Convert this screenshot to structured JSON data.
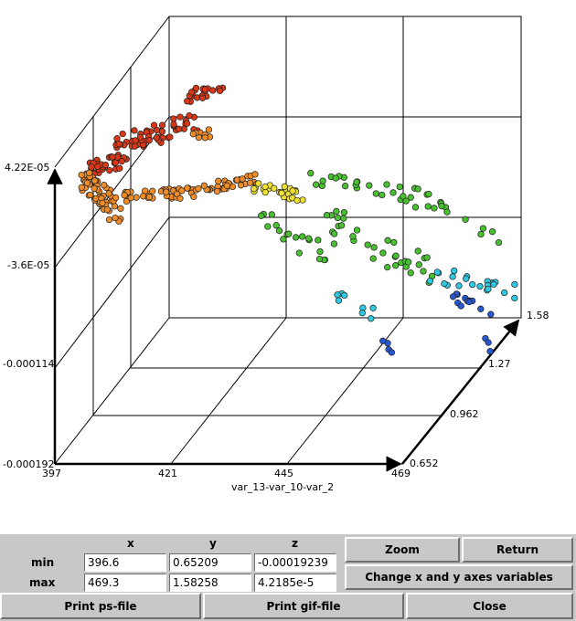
{
  "chart_data": {
    "type": "scatter3d",
    "title": "",
    "xlabel": "var_13-var_10-var_2",
    "ylabel": "",
    "zlabel": "",
    "x_ticks": [
      "397",
      "421",
      "445",
      "469"
    ],
    "y_ticks": [
      "0.652",
      "0.962",
      "1.27",
      "1.58"
    ],
    "z_ticks": [
      "-0.000192",
      "-0.000114",
      "-3.6E-05",
      "4.22E-05"
    ],
    "xlim": [
      397,
      469
    ],
    "ylim": [
      0.652,
      1.58
    ],
    "zlim": [
      -0.000192,
      4.22e-05
    ],
    "grid": true,
    "color_scale": [
      "#e02010",
      "#f08a20",
      "#f0e020",
      "#40c030",
      "#30c8e8",
      "#2050d0"
    ],
    "clusters": [
      {
        "name": "red",
        "color": "#d83818",
        "count": 120
      },
      {
        "name": "orange",
        "color": "#f08c28",
        "count": 160
      },
      {
        "name": "yellow",
        "color": "#f0e030",
        "count": 25
      },
      {
        "name": "green",
        "color": "#48c030",
        "count": 80
      },
      {
        "name": "cyan",
        "color": "#30c8e0",
        "count": 40
      },
      {
        "name": "blue",
        "color": "#2858d0",
        "count": 8
      }
    ]
  },
  "panel": {
    "headers": {
      "x": "x",
      "y": "y",
      "z": "z"
    },
    "min_label": "min",
    "max_label": "max",
    "min": {
      "x": "396.6",
      "y": "0.65209",
      "z": "-0.00019239"
    },
    "max": {
      "x": "469.3",
      "y": "1.58258",
      "z": "4.2185e-5"
    },
    "buttons": {
      "zoom": "Zoom",
      "return": "Return",
      "change_axes": "Change x and y axes variables",
      "print_ps": "Print ps-file",
      "print_gif": "Print gif-file",
      "close": "Close"
    }
  }
}
